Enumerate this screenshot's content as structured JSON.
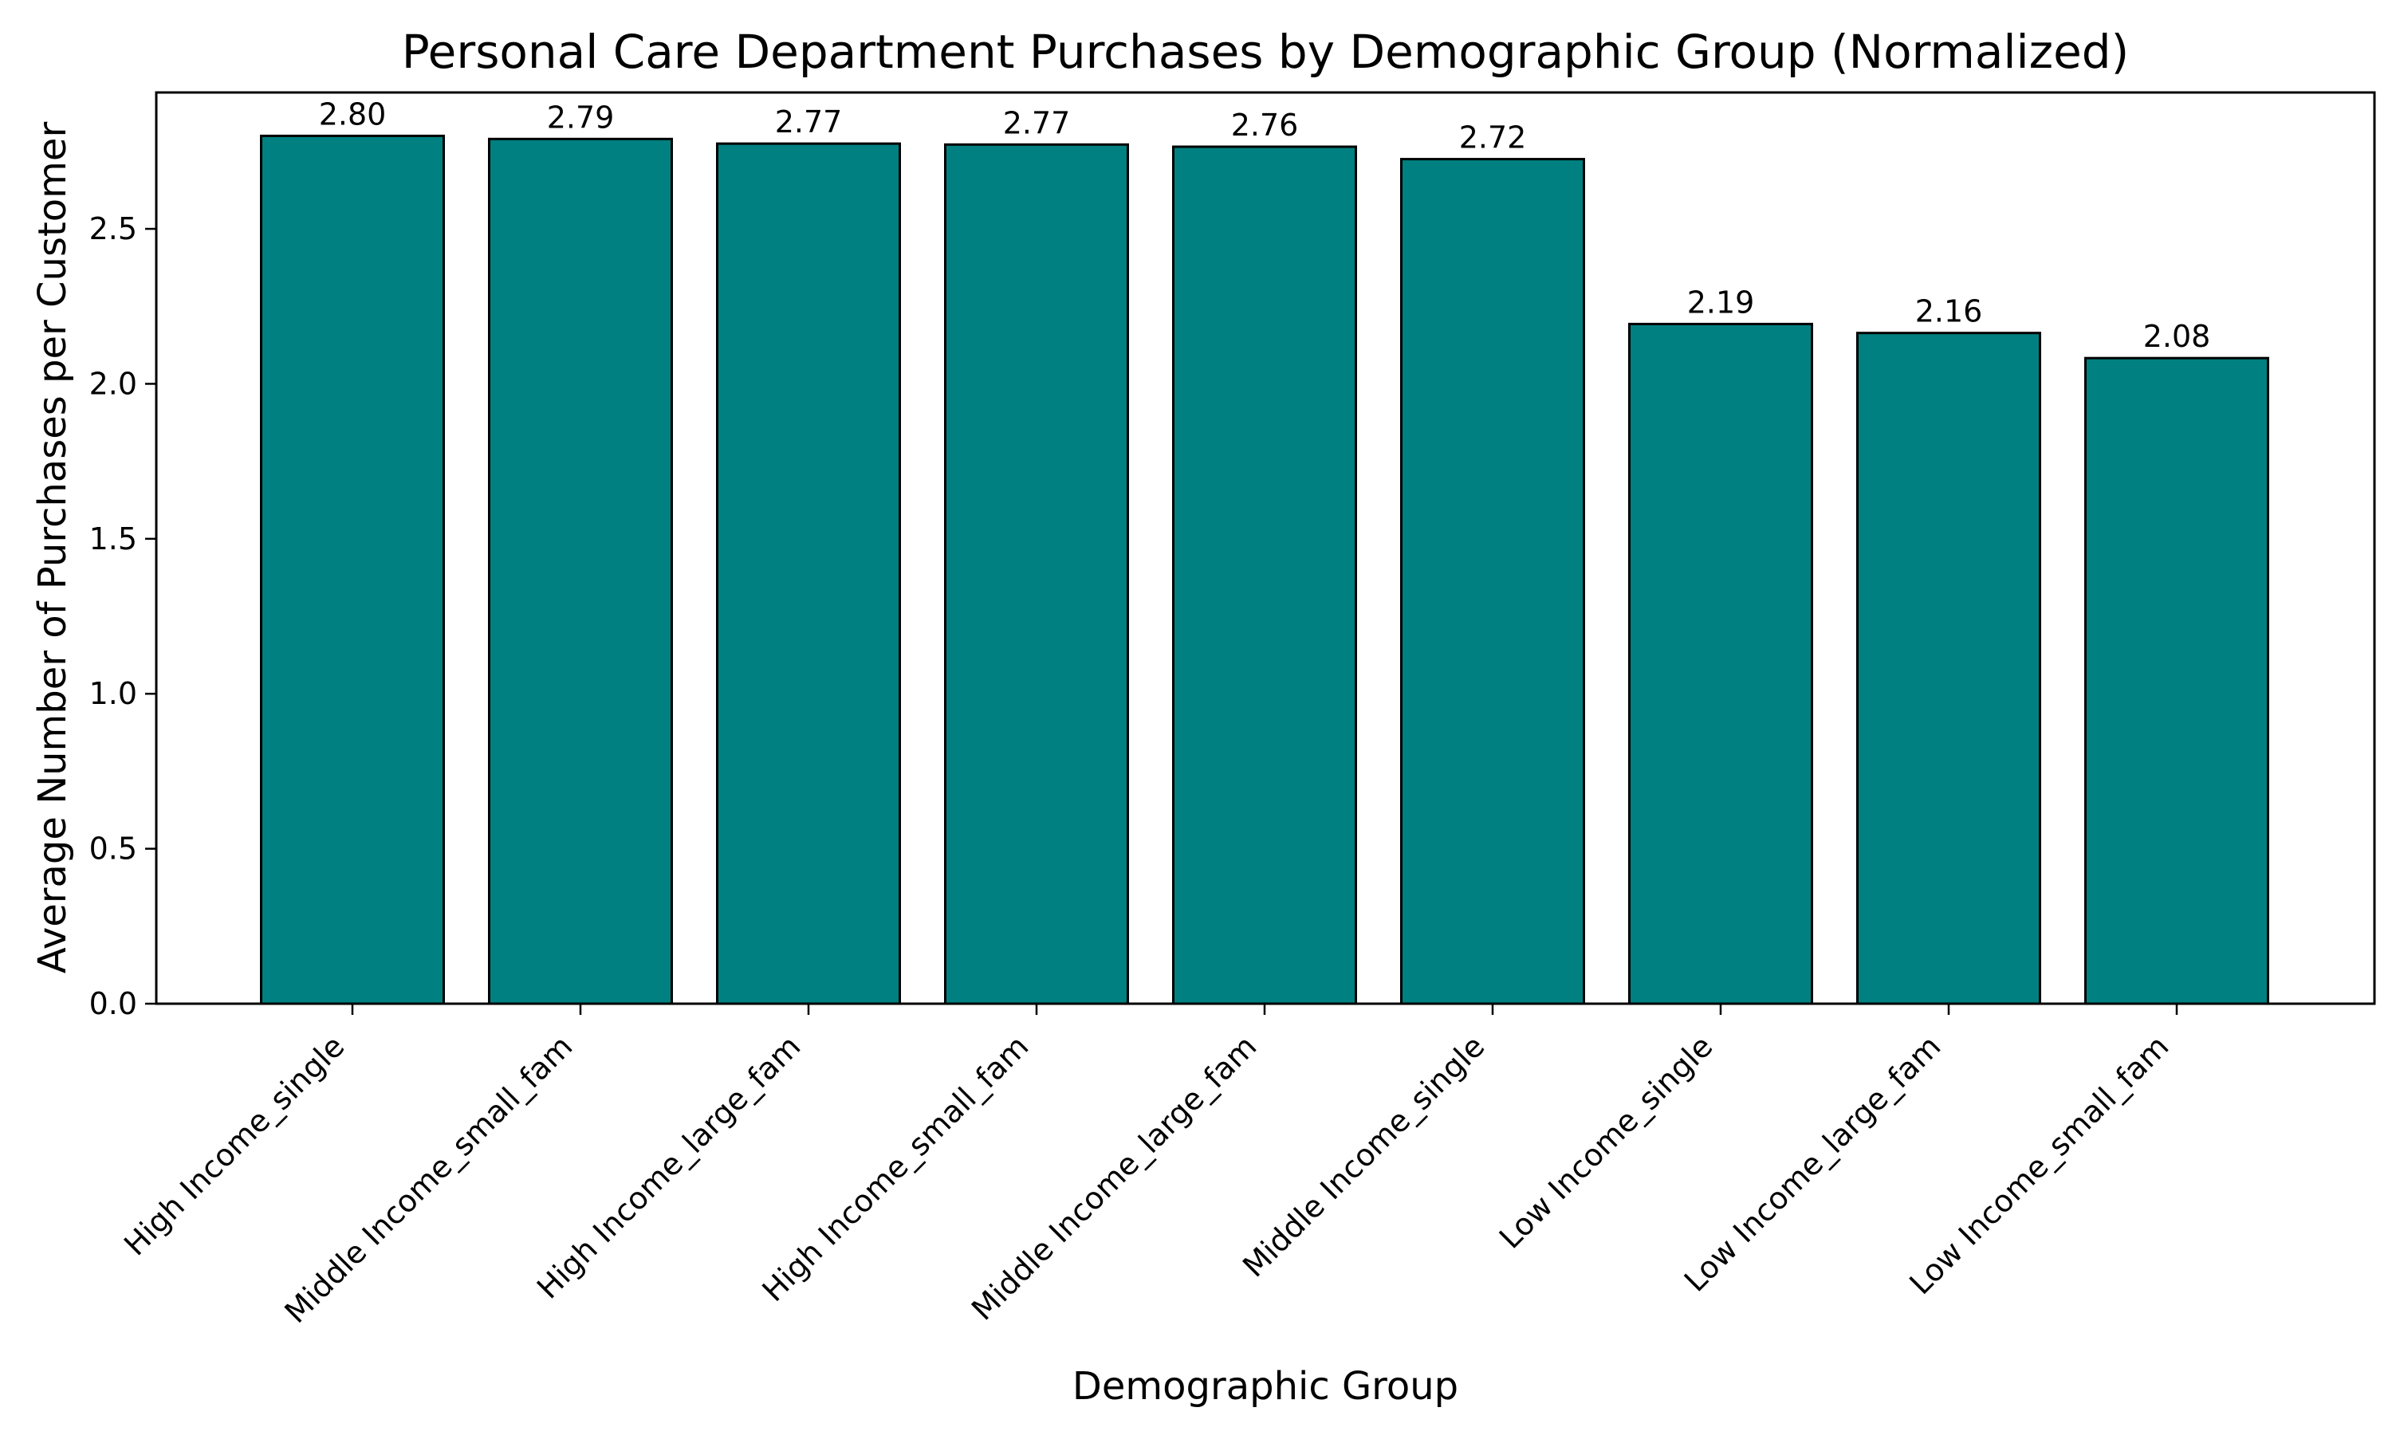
{
  "chart_data": {
    "type": "bar",
    "title": "Personal Care Department Purchases by Demographic Group (Normalized)",
    "xlabel": "Demographic Group",
    "ylabel": "Average Number of Purchases per Customer",
    "categories": [
      "High Income_single",
      "Middle Income_small_fam",
      "High Income_large_fam",
      "High Income_small_fam",
      "Middle Income_large_fam",
      "Middle Income_single",
      "Low Income_single",
      "Low Income_large_fam",
      "Low Income_small_fam"
    ],
    "values": [
      2.8,
      2.79,
      2.775,
      2.772,
      2.765,
      2.725,
      2.193,
      2.164,
      2.083
    ],
    "data_labels": [
      "2.80",
      "2.79",
      "2.77",
      "2.77",
      "2.76",
      "2.72",
      "2.19",
      "2.16",
      "2.08"
    ],
    "ylim": [
      0,
      2.94
    ],
    "yticks": [
      0.0,
      0.5,
      1.0,
      1.5,
      2.0,
      2.5
    ],
    "ytick_labels": [
      "0.0",
      "0.5",
      "1.0",
      "1.5",
      "2.0",
      "2.5"
    ],
    "grid": false,
    "bar_color": "#008080",
    "edge_color": "#000000"
  }
}
